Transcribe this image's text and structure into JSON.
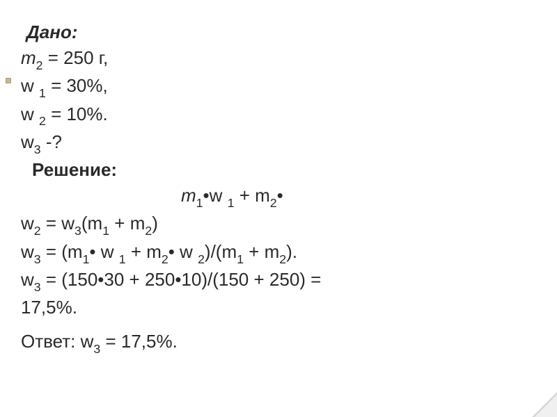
{
  "text_color": "#2a2a2a",
  "background_color": "#ffffff",
  "font_size": 26,
  "bullet_color": "#c8b89a",
  "heading_given": "Дано:",
  "given": {
    "line1_var": "m",
    "line1_sub": "2",
    "line1_rest": " = 250 г,",
    "line2_pre": "w ",
    "line2_sub": "1",
    "line2_rest": " = 30%,",
    "line3_pre": " w ",
    "line3_sub": "2",
    "line3_rest": " = 10%.",
    "line4_pre": "  w",
    "line4_sub": "3",
    "line4_rest": "  -?"
  },
  "heading_solution": "Решение:",
  "solution": {
    "eq1_part1_m1": "m",
    "eq1_part1_s1": "1",
    "eq1_part1_dot_w": "•w ",
    "eq1_part1_s1b": "1",
    "eq1_part1_plus_m2": " + m",
    "eq1_part1_s2": "2",
    "eq1_part1_dot": "•",
    "eq1_line2_w2": "w",
    "eq1_line2_s2": "2",
    "eq1_line2_eq_w3": " = w",
    "eq1_line2_s3": "3",
    "eq1_line2_open": "(m",
    "eq1_line2_s1": "1",
    "eq1_line2_plus_m2": " + m",
    "eq1_line2_s2b": "2",
    "eq1_line2_close": ")",
    "eq2_w3": " w",
    "eq2_s3": "3",
    "eq2_eq_open": " = (m",
    "eq2_s1": "1",
    "eq2_dot_w1": "• w ",
    "eq2_s1b": "1",
    "eq2_plus_m2": " + m",
    "eq2_s2": "2",
    "eq2_dot_w2": "• w ",
    "eq2_s2b": "2",
    "eq2_div_open": ")/(m",
    "eq2_s1c": "1",
    "eq2_plus_m2b": " + m",
    "eq2_s2c": "2",
    "eq2_close": ").",
    "eq3_w3": " w",
    "eq3_s3": "3",
    "eq3_rest": " = (150•30 + 250•10)/(150 + 250) =",
    "eq3_line2": "17,5%."
  },
  "answer_pre": "Ответ: w",
  "answer_sub": "3",
  "answer_rest": " = 17,5%."
}
